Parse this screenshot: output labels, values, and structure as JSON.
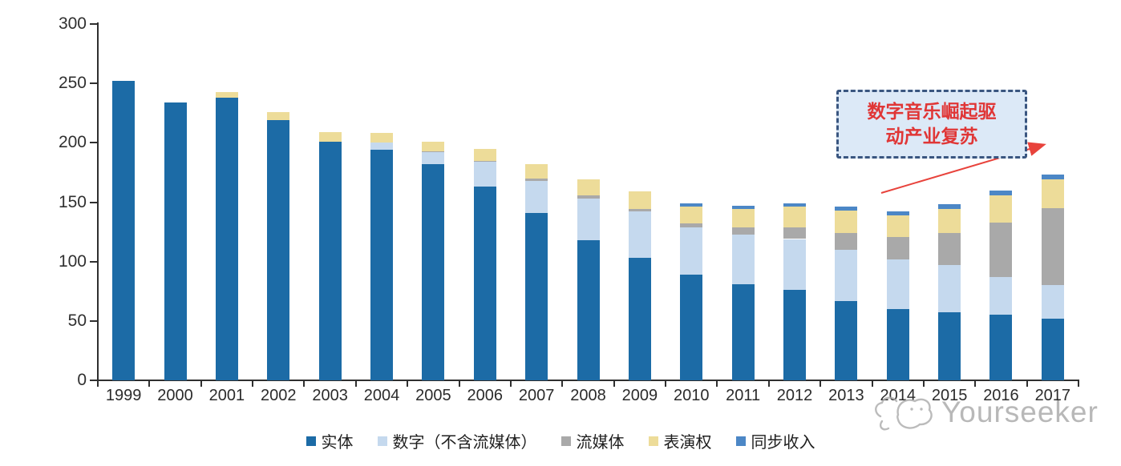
{
  "chart_data": {
    "type": "bar",
    "stacked": true,
    "title": "",
    "xlabel": "",
    "ylabel": "",
    "categories": [
      "1999",
      "2000",
      "2001",
      "2002",
      "2003",
      "2004",
      "2005",
      "2006",
      "2007",
      "2008",
      "2009",
      "2010",
      "2011",
      "2012",
      "2013",
      "2014",
      "2015",
      "2016",
      "2017"
    ],
    "series": [
      {
        "key": "physical",
        "name": "实体",
        "color": "#1C6BA6",
        "values": [
          252,
          234,
          238,
          219,
          201,
          194,
          182,
          163,
          141,
          118,
          103,
          89,
          81,
          76,
          67,
          60,
          57,
          55,
          52
        ]
      },
      {
        "key": "digital-excl-streaming",
        "name": "数字（不含流媒体）",
        "color": "#C5D9EE",
        "values": [
          0,
          0,
          0,
          0,
          0,
          6,
          10,
          21,
          27,
          35,
          39,
          40,
          42,
          43,
          43,
          42,
          40,
          32,
          28
        ]
      },
      {
        "key": "streaming",
        "name": "流媒体",
        "color": "#A9A9A9",
        "values": [
          0,
          0,
          0,
          0,
          0,
          0,
          1,
          1,
          2,
          3,
          2,
          3,
          6,
          10,
          14,
          19,
          27,
          46,
          65
        ]
      },
      {
        "key": "performance-rights",
        "name": "表演权",
        "color": "#EDDC99",
        "values": [
          0,
          0,
          5,
          7,
          8,
          8,
          8,
          10,
          12,
          13,
          15,
          14,
          15,
          17,
          19,
          18,
          20,
          23,
          24
        ]
      },
      {
        "key": "sync-revenue",
        "name": "同步收入",
        "color": "#4C87C6",
        "values": [
          0,
          0,
          0,
          0,
          0,
          0,
          0,
          0,
          0,
          0,
          0,
          3,
          3,
          3,
          3,
          3,
          4,
          4,
          4
        ]
      }
    ],
    "ylim": [
      0,
      300
    ],
    "yticks": [
      0,
      50,
      100,
      150,
      200,
      250,
      300
    ],
    "grid": false,
    "legend_position": "bottom",
    "axis_color": "#2f2f2f"
  },
  "annotation": {
    "line1": "数字音乐崛起驱",
    "line2": "动产业复苏",
    "text_color": "#E03636",
    "box_fill": "#DCE9F7",
    "box_border": "#3A5680",
    "arrow_color": "#E8433C"
  },
  "watermark": {
    "text": "Yourseeker",
    "color": "#ACACAC"
  }
}
